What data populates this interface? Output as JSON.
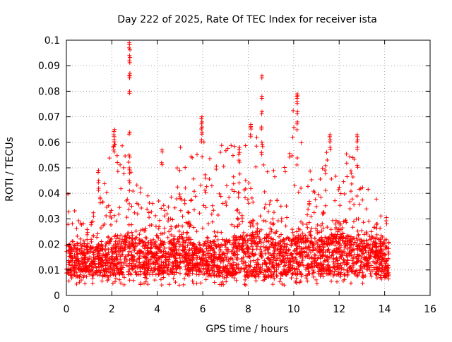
{
  "chart_data": {
    "type": "scatter",
    "title": "Day 222 of 2025, Rate Of TEC Index for receiver ista",
    "xlabel": "GPS time / hours",
    "ylabel": "ROTI / TECUs",
    "xlim": [
      0,
      16
    ],
    "ylim": [
      0,
      0.1
    ],
    "xticks": [
      0,
      2,
      4,
      6,
      8,
      10,
      12,
      14,
      16
    ],
    "xtick_labels": [
      "0",
      "2",
      "4",
      "6",
      "8",
      "10",
      "12",
      "14",
      "16"
    ],
    "yticks": [
      0,
      0.01,
      0.02,
      0.03,
      0.04,
      0.05,
      0.06,
      0.07,
      0.08,
      0.09,
      0.1
    ],
    "ytick_labels": [
      "0",
      "0.01",
      "0.02",
      "0.03",
      "0.04",
      "0.05",
      "0.06",
      "0.07",
      "0.08",
      "0.09",
      "0.1"
    ],
    "grid": true,
    "marker": "+",
    "series": [
      {
        "name": "ROTI",
        "color": "#ff0000",
        "x_range": [
          0,
          14.2
        ],
        "band": {
          "x": [
            0,
            0.5,
            1,
            1.5,
            2,
            2.5,
            3,
            3.5,
            4,
            4.5,
            5,
            5.5,
            6,
            6.5,
            7,
            7.5,
            8,
            8.5,
            9,
            9.5,
            10,
            10.5,
            11,
            11.5,
            12,
            12.5,
            13,
            13.5,
            14,
            14.2
          ],
          "core_low": [
            0.008,
            0.007,
            0.007,
            0.007,
            0.008,
            0.008,
            0.008,
            0.008,
            0.008,
            0.008,
            0.008,
            0.008,
            0.008,
            0.007,
            0.007,
            0.008,
            0.007,
            0.007,
            0.007,
            0.008,
            0.008,
            0.008,
            0.008,
            0.008,
            0.008,
            0.008,
            0.007,
            0.007,
            0.007,
            0.007
          ],
          "core_high": [
            0.02,
            0.018,
            0.018,
            0.02,
            0.022,
            0.023,
            0.022,
            0.021,
            0.02,
            0.021,
            0.023,
            0.022,
            0.02,
            0.021,
            0.022,
            0.023,
            0.024,
            0.024,
            0.022,
            0.022,
            0.023,
            0.024,
            0.022,
            0.023,
            0.024,
            0.023,
            0.022,
            0.021,
            0.02,
            0.019
          ],
          "upper_env": [
            0.043,
            0.03,
            0.028,
            0.04,
            0.06,
            0.06,
            0.05,
            0.04,
            0.037,
            0.04,
            0.06,
            0.058,
            0.066,
            0.058,
            0.06,
            0.058,
            0.06,
            0.065,
            0.05,
            0.055,
            0.075,
            0.055,
            0.045,
            0.06,
            0.048,
            0.06,
            0.045,
            0.04,
            0.032,
            0.03
          ]
        },
        "spikes": [
          {
            "x": 2.78,
            "y": [
              0.099,
              0.097,
              0.094,
              0.092,
              0.087,
              0.086,
              0.08,
              0.064,
              0.055,
              0.05,
              0.045
            ]
          },
          {
            "x": 2.1,
            "y": [
              0.065,
              0.063,
              0.061,
              0.059,
              0.057
            ]
          },
          {
            "x": 5.95,
            "y": [
              0.07,
              0.068,
              0.066,
              0.064,
              0.061
            ]
          },
          {
            "x": 8.6,
            "y": [
              0.086,
              0.078,
              0.072,
              0.066,
              0.06,
              0.056
            ]
          },
          {
            "x": 10.15,
            "y": [
              0.079,
              0.078,
              0.076,
              0.072,
              0.068
            ]
          },
          {
            "x": 11.6,
            "y": [
              0.063,
              0.061,
              0.058
            ]
          },
          {
            "x": 12.8,
            "y": [
              0.063,
              0.061,
              0.058,
              0.051
            ]
          },
          {
            "x": 4.2,
            "y": [
              0.057,
              0.052
            ]
          },
          {
            "x": 1.4,
            "y": [
              0.049,
              0.045,
              0.042
            ]
          },
          {
            "x": 7.6,
            "y": [
              0.058,
              0.056,
              0.053
            ]
          },
          {
            "x": 8.1,
            "y": [
              0.067,
              0.066,
              0.063
            ]
          }
        ]
      }
    ]
  }
}
